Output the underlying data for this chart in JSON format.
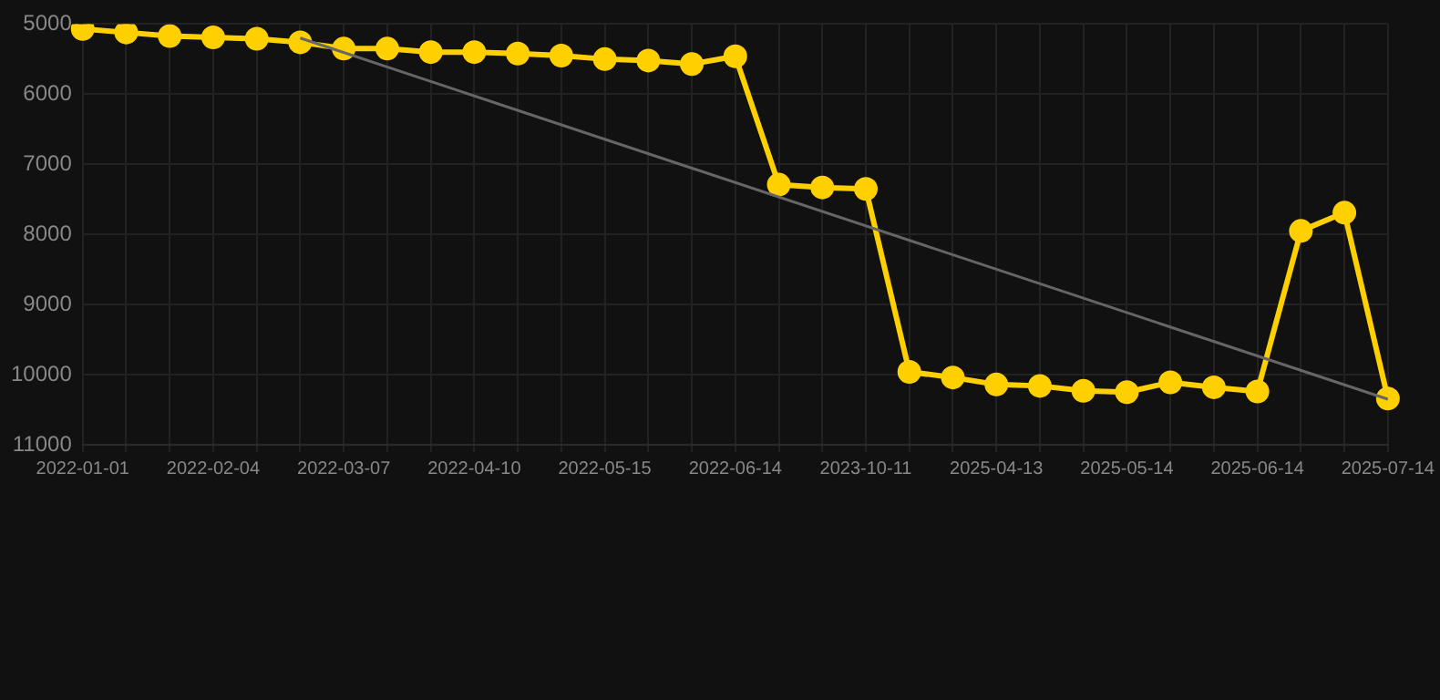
{
  "chart_data": {
    "type": "line",
    "categories": [
      "2022-01-01",
      null,
      null,
      "2022-02-04",
      null,
      null,
      "2022-03-07",
      null,
      null,
      "2022-04-10",
      null,
      null,
      "2022-05-15",
      null,
      null,
      "2022-06-14",
      null,
      null,
      "2023-10-11",
      null,
      null,
      "2025-04-13",
      null,
      null,
      "2025-05-14",
      null,
      null,
      "2025-06-14",
      null,
      null,
      "2025-07-14"
    ],
    "series": [
      {
        "color": "#666666",
        "marker": "none",
        "values": [
          null,
          null,
          null,
          null,
          null,
          5200,
          null,
          null,
          null,
          null,
          null,
          null,
          null,
          null,
          null,
          null,
          null,
          null,
          null,
          null,
          null,
          null,
          null,
          null,
          null,
          null,
          null,
          null,
          null,
          null,
          10350
        ]
      },
      {
        "color": "#ffd000",
        "marker": "circle",
        "values": [
          5070,
          5120,
          5170,
          5190,
          5210,
          5260,
          5350,
          5350,
          5400,
          5400,
          5420,
          5450,
          5500,
          5520,
          5570,
          5460,
          7290,
          7330,
          7350,
          9960,
          10040,
          10140,
          10160,
          10230,
          10250,
          10110,
          10180,
          10240,
          7950,
          7690,
          10340
        ]
      }
    ],
    "ylim": [
      11000,
      5000
    ],
    "yticks": [
      5000,
      6000,
      7000,
      8000,
      9000,
      10000,
      11000
    ],
    "grid": true,
    "legend": false
  }
}
